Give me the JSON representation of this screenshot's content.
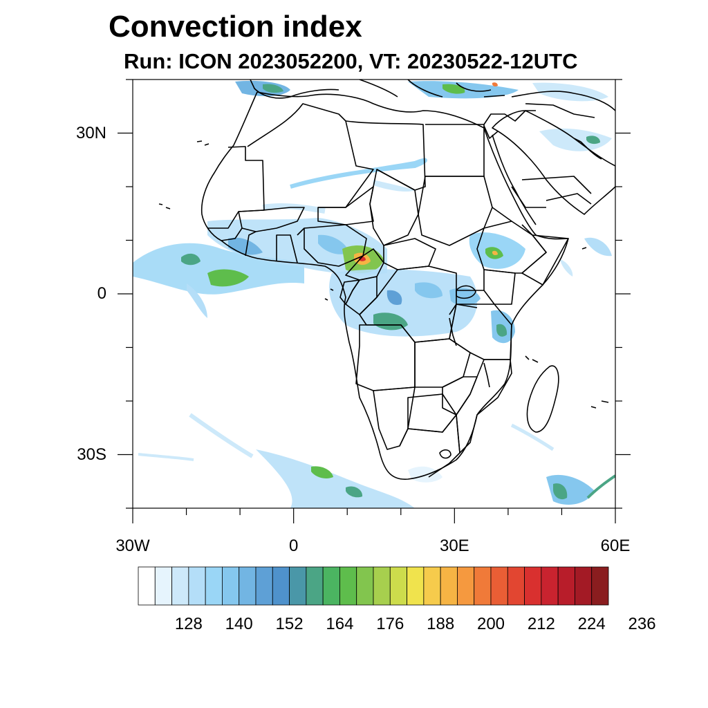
{
  "title": "Convection index",
  "subtitle": "Run: ICON 2023052200,  VT: 20230522-12UTC",
  "map": {
    "lon_range": [
      -30,
      60
    ],
    "lat_range": [
      -40,
      40
    ],
    "lon_labels": [
      "30W",
      "0",
      "30E",
      "60E"
    ],
    "lat_labels": [
      "30N",
      "0",
      "30S"
    ],
    "ocean_color": "#ffffff",
    "border_color": "#000000"
  },
  "colorbar": {
    "labels": [
      "128",
      "140",
      "152",
      "164",
      "176",
      "188",
      "200",
      "212",
      "224",
      "236"
    ],
    "colors": [
      "#ffffff",
      "#e6f4fd",
      "#cde9fa",
      "#b4def8",
      "#9ad6f6",
      "#85c7ee",
      "#72b5e3",
      "#5ea0d6",
      "#4f92cc",
      "#4a97a8",
      "#4ba585",
      "#4bb461",
      "#5ebd4c",
      "#82c54e",
      "#a7cf4e",
      "#cddc4c",
      "#f0e34d",
      "#f6cb4c",
      "#f6b444",
      "#f5993f",
      "#f07a39",
      "#e95e35",
      "#e24631",
      "#d9302f",
      "#c9232f",
      "#b81d2a",
      "#a31a25",
      "#8a1d1f"
    ]
  }
}
